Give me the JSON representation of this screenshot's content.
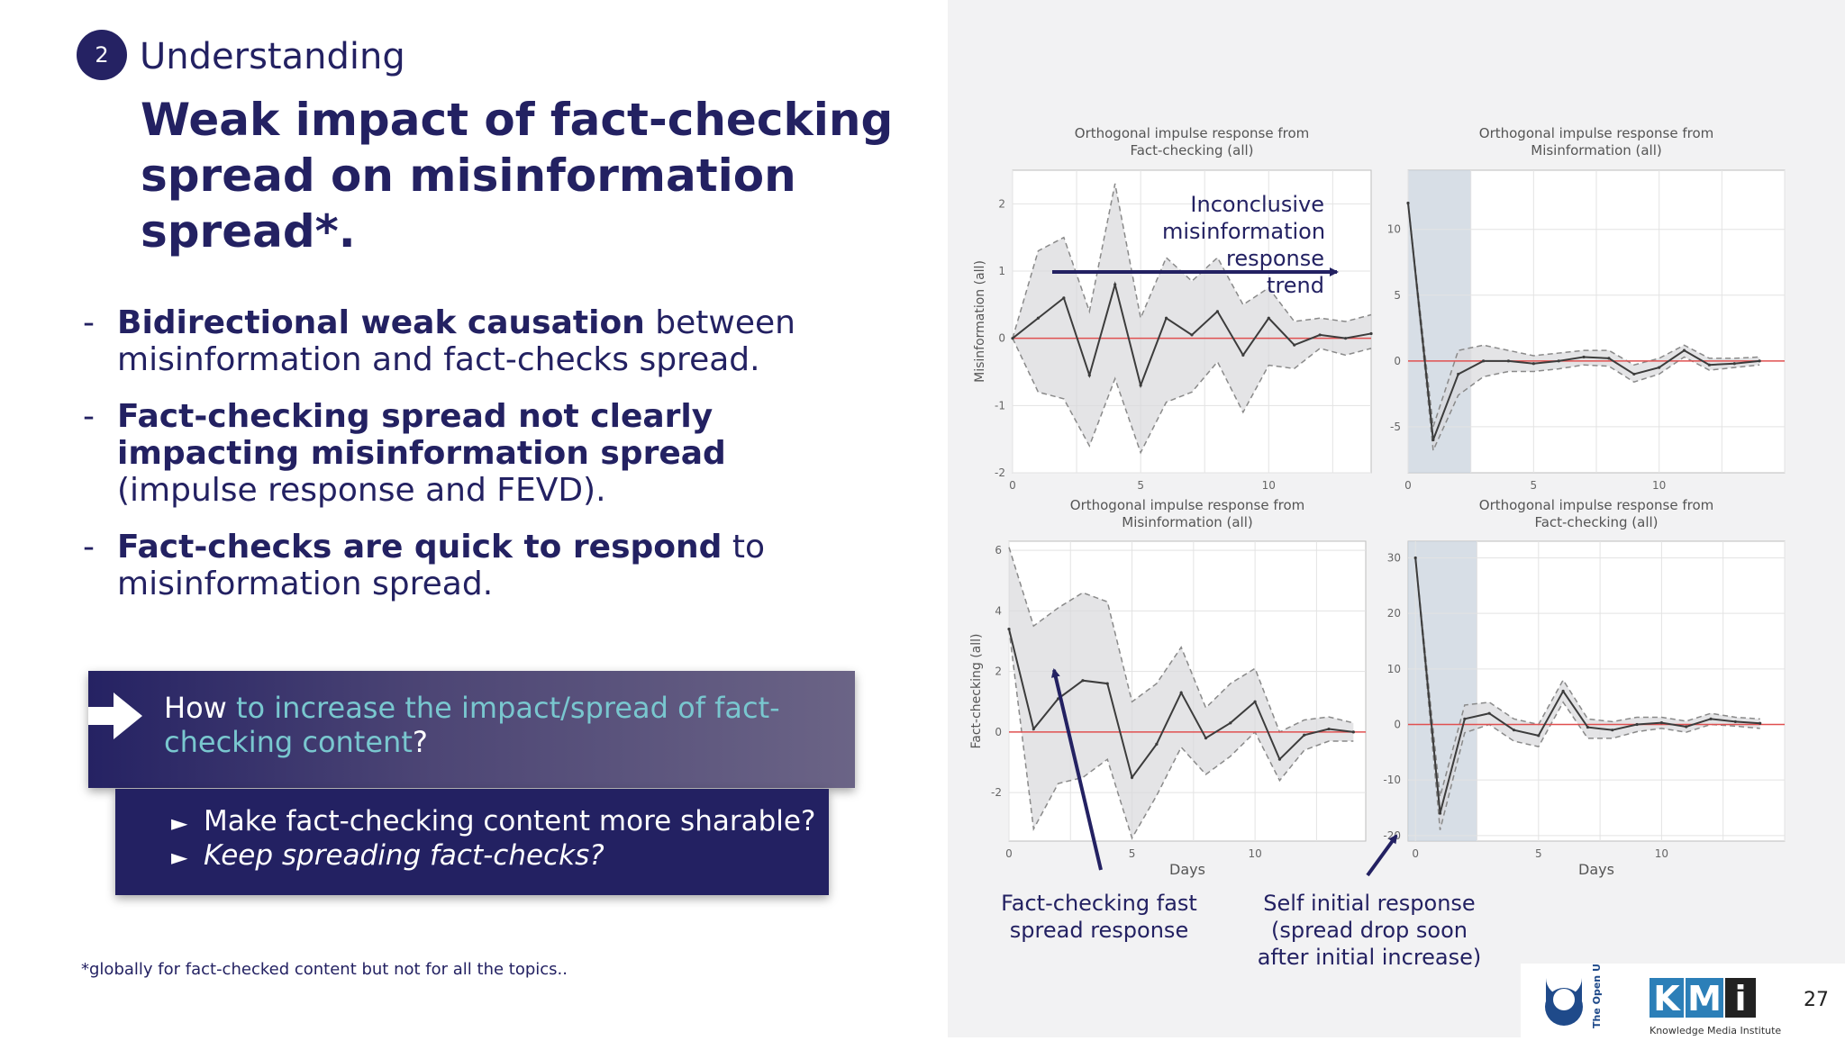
{
  "slide": {
    "step_number": "2",
    "section_title": "Understanding",
    "headline": "Weak impact of fact-checking spread on misinformation spread*.",
    "bullets": [
      {
        "bold": "Bidirectional weak causation",
        "rest": " between misinformation and fact-checks spread."
      },
      {
        "bold": "Fact-checking spread not clearly impacting misinformation spread",
        "rest": " (impulse response and FEVD)."
      },
      {
        "bold": "Fact-checks are quick to respond",
        "rest": " to misinformation spread."
      }
    ],
    "callout": {
      "prefix": "How ",
      "highlight": "to increase the impact/spread of fact-checking content",
      "suffix": "?"
    },
    "suggestions": [
      "Make fact-checking content more sharable?",
      "Keep spreading fact-checks?"
    ],
    "suggestion_marker": "►",
    "footnote": "*globally for fact-checked content but not for all the topics..",
    "page_number": "27",
    "logo": {
      "university": "The Open University",
      "kmi_letters": [
        "K",
        "M",
        "i"
      ],
      "kmi_caption": "Knowledge Media Institute"
    },
    "annotations": {
      "inconclusive": [
        "Inconclusive",
        "misinformation",
        "response trend"
      ],
      "fast": [
        "Fact-checking fast",
        "spread response"
      ],
      "self": [
        "Self initial response",
        "(spread drop soon",
        "after initial increase)"
      ]
    }
  },
  "colors": {
    "navy": "#232162",
    "teal_highlight": "#79c7cf",
    "zero_line": "#e05050",
    "band": "#d9d9dc"
  },
  "chart_data": [
    {
      "type": "line",
      "title": "Orthogonal impulse response from Fact-checking (all)",
      "ylabel": "Misinformation (all)",
      "xlabel": "",
      "xlim": [
        0,
        14
      ],
      "ylim": [
        -2,
        2.5
      ],
      "xticks": [
        0,
        5,
        10
      ],
      "yticks": [
        -2,
        -1,
        0,
        1,
        2
      ],
      "x": [
        0,
        1,
        2,
        3,
        4,
        5,
        6,
        7,
        8,
        9,
        10,
        11,
        12,
        13,
        14
      ],
      "response": [
        0,
        0.3,
        0.6,
        -0.55,
        0.8,
        -0.7,
        0.3,
        0.05,
        0.4,
        -0.25,
        0.3,
        -0.1,
        0.05,
        0,
        0.07
      ],
      "upper": [
        0,
        1.3,
        1.5,
        0.4,
        2.3,
        0.3,
        1.2,
        0.85,
        1.2,
        0.5,
        0.75,
        0.25,
        0.3,
        0.25,
        0.35
      ],
      "lower": [
        0,
        -0.8,
        -0.9,
        -1.6,
        -0.6,
        -1.7,
        -0.95,
        -0.8,
        -0.35,
        -1.1,
        -0.4,
        -0.45,
        -0.15,
        -0.25,
        -0.15
      ],
      "shaded_region": null
    },
    {
      "type": "line",
      "title": "Orthogonal impulse response from Misinformation (all)",
      "ylabel": "",
      "xlabel": "",
      "xlim": [
        0,
        15
      ],
      "ylim": [
        -8.5,
        14.5
      ],
      "xticks": [
        0,
        5,
        10
      ],
      "yticks": [
        -5,
        0,
        5,
        10
      ],
      "x": [
        0,
        1,
        2,
        3,
        4,
        5,
        6,
        7,
        8,
        9,
        10,
        11,
        12,
        13,
        14
      ],
      "response": [
        12,
        -6,
        -1,
        0,
        0,
        -0.2,
        0,
        0.3,
        0.2,
        -1,
        -0.5,
        0.8,
        -0.3,
        -0.2,
        0
      ],
      "upper": [
        12,
        -5,
        0.8,
        1.2,
        0.8,
        0.4,
        0.6,
        0.8,
        0.8,
        -0.3,
        0.2,
        1.2,
        0.2,
        0.2,
        0.3
      ],
      "lower": [
        12,
        -6.8,
        -2.6,
        -1.2,
        -0.8,
        -0.8,
        -0.6,
        -0.3,
        -0.4,
        -1.6,
        -1,
        0.3,
        -0.7,
        -0.5,
        -0.3
      ],
      "shaded_region": [
        -0.3,
        2.5
      ]
    },
    {
      "type": "line",
      "title": "Orthogonal impulse response from Misinformation (all)",
      "ylabel": "Fact-checking (all)",
      "xlabel": "Days",
      "xlim": [
        0,
        14.5
      ],
      "ylim": [
        -3.6,
        6.3
      ],
      "xticks": [
        0,
        5,
        10
      ],
      "yticks": [
        -2,
        0,
        2,
        4,
        6
      ],
      "x": [
        0,
        1,
        2,
        3,
        4,
        5,
        6,
        7,
        8,
        9,
        10,
        11,
        12,
        13,
        14
      ],
      "response": [
        3.4,
        0.1,
        1.1,
        1.7,
        1.6,
        -1.5,
        -0.4,
        1.3,
        -0.2,
        0.3,
        1,
        -0.9,
        -0.1,
        0.1,
        0
      ],
      "upper": [
        6.1,
        3.5,
        4.1,
        4.6,
        4.3,
        1,
        1.6,
        2.8,
        0.8,
        1.6,
        2.1,
        0,
        0.4,
        0.5,
        0.3
      ],
      "lower": [
        3.4,
        -3.2,
        -1.7,
        -1.5,
        -0.9,
        -3.5,
        -2.1,
        -0.5,
        -1.4,
        -0.8,
        0,
        -1.6,
        -0.6,
        -0.3,
        -0.3
      ],
      "shaded_region": null
    },
    {
      "type": "line",
      "title": "Orthogonal impulse response from Fact-checking (all)",
      "ylabel": "",
      "xlabel": "Days",
      "xlim": [
        -0.3,
        15
      ],
      "ylim": [
        -21,
        33
      ],
      "xticks": [
        0,
        5,
        10
      ],
      "yticks": [
        -20,
        -10,
        0,
        10,
        20,
        30
      ],
      "x": [
        0,
        1,
        2,
        3,
        4,
        5,
        6,
        7,
        8,
        9,
        10,
        11,
        12,
        13,
        14
      ],
      "response": [
        30,
        -16,
        1,
        2,
        -1,
        -2,
        6,
        -0.5,
        -1,
        0,
        0.3,
        -0.4,
        1,
        0.5,
        0.2
      ],
      "upper": [
        30,
        -13,
        3.5,
        4,
        1,
        0,
        8,
        1,
        0.5,
        1.3,
        1.3,
        0.6,
        2,
        1.3,
        1
      ],
      "lower": [
        30,
        -19,
        -1.5,
        0,
        -3,
        -4,
        4,
        -2.5,
        -2.5,
        -1.3,
        -0.7,
        -1.4,
        0,
        -0.3,
        -0.7
      ],
      "shaded_region": [
        -0.3,
        2.5
      ]
    }
  ]
}
